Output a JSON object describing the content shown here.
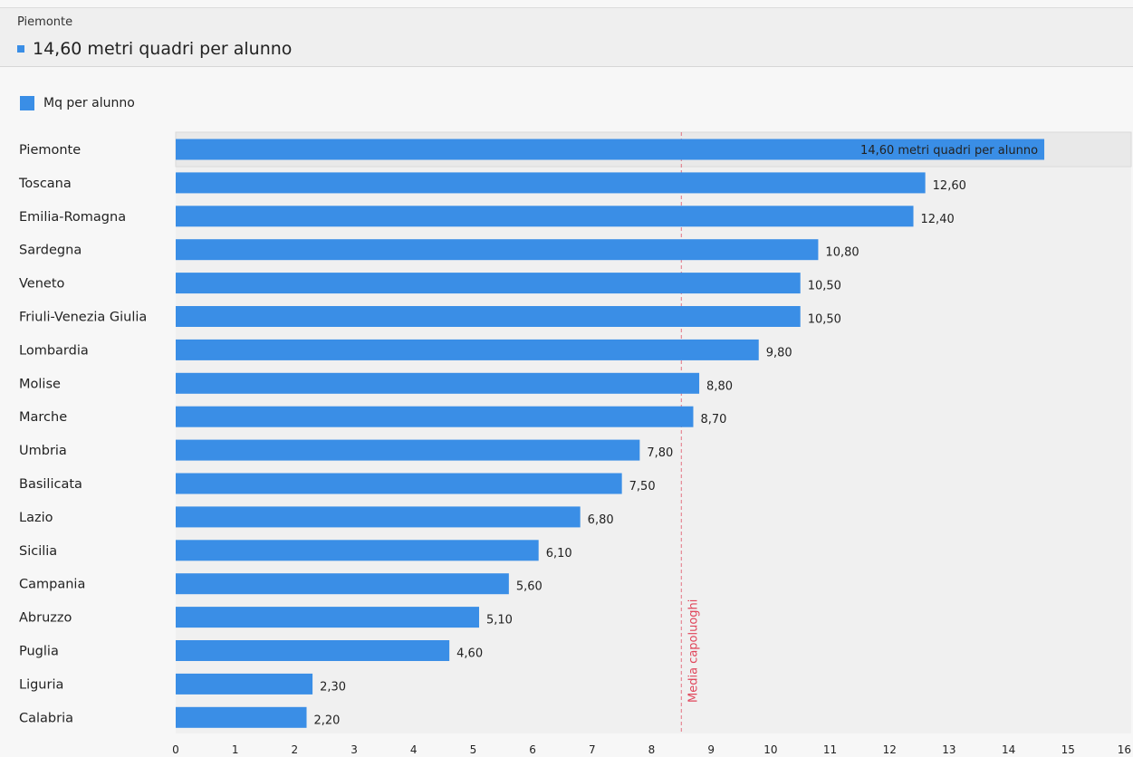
{
  "header": {
    "region": "Piemonte",
    "value_text": "14,60 metri quadri per alunno"
  },
  "colors": {
    "bar": "#3a8ee6",
    "reference_line": "#e0455a",
    "plot_bg": "#f0f0f0"
  },
  "chart_data": {
    "type": "bar",
    "orientation": "horizontal",
    "categories": [
      "Piemonte",
      "Toscana",
      "Emilia-Romagna",
      "Sardegna",
      "Veneto",
      "Friuli-Venezia Giulia",
      "Lombardia",
      "Molise",
      "Marche",
      "Umbria",
      "Basilicata",
      "Lazio",
      "Sicilia",
      "Campania",
      "Abruzzo",
      "Puglia",
      "Liguria",
      "Calabria"
    ],
    "series": [
      {
        "name": "Mq per alunno",
        "values": [
          14.6,
          12.6,
          12.4,
          10.8,
          10.5,
          10.5,
          9.8,
          8.8,
          8.7,
          7.8,
          7.5,
          6.8,
          6.1,
          5.6,
          5.1,
          4.6,
          2.3,
          2.2
        ]
      }
    ],
    "value_labels": [
      "14,60 metri quadri per alunno",
      "12,60",
      "12,40",
      "10,80",
      "10,50",
      "10,50",
      "9,80",
      "8,80",
      "8,70",
      "7,80",
      "7,50",
      "6,80",
      "6,10",
      "5,60",
      "5,10",
      "4,60",
      "2,30",
      "2,20"
    ],
    "highlighted_category": "Piemonte",
    "x_ticks": [
      0,
      1,
      2,
      3,
      4,
      5,
      6,
      7,
      8,
      9,
      10,
      11,
      12,
      13,
      14,
      15,
      16
    ],
    "xlim": [
      0,
      16
    ],
    "reference_line": {
      "label": "Media capoluoghi",
      "value": 8.5
    },
    "legend": {
      "position": "top-left"
    },
    "grid": false
  }
}
